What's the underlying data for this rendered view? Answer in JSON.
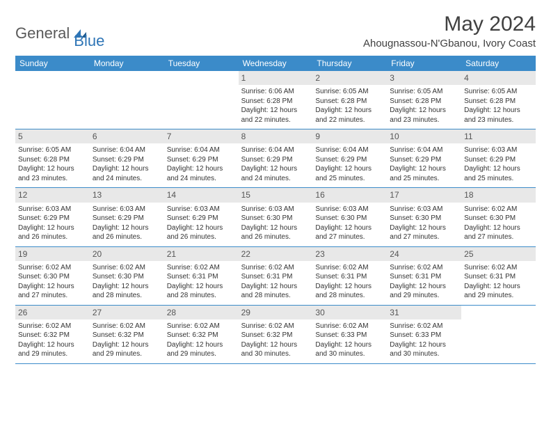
{
  "logo": {
    "text1": "General",
    "text2": "Blue"
  },
  "title": "May 2024",
  "location": "Ahougnassou-N'Gbanou, Ivory Coast",
  "colors": {
    "header_bg": "#3b8bc9",
    "header_text": "#ffffff",
    "daynum_bg": "#e8e8e8",
    "border": "#3b8bc9",
    "logo_gray": "#5a5a5a",
    "logo_blue": "#2e75b6"
  },
  "day_names": [
    "Sunday",
    "Monday",
    "Tuesday",
    "Wednesday",
    "Thursday",
    "Friday",
    "Saturday"
  ],
  "weeks": [
    [
      {
        "day": "",
        "sunrise": "",
        "sunset": "",
        "daylight": ""
      },
      {
        "day": "",
        "sunrise": "",
        "sunset": "",
        "daylight": ""
      },
      {
        "day": "",
        "sunrise": "",
        "sunset": "",
        "daylight": ""
      },
      {
        "day": "1",
        "sunrise": "Sunrise: 6:06 AM",
        "sunset": "Sunset: 6:28 PM",
        "daylight": "Daylight: 12 hours and 22 minutes."
      },
      {
        "day": "2",
        "sunrise": "Sunrise: 6:05 AM",
        "sunset": "Sunset: 6:28 PM",
        "daylight": "Daylight: 12 hours and 22 minutes."
      },
      {
        "day": "3",
        "sunrise": "Sunrise: 6:05 AM",
        "sunset": "Sunset: 6:28 PM",
        "daylight": "Daylight: 12 hours and 23 minutes."
      },
      {
        "day": "4",
        "sunrise": "Sunrise: 6:05 AM",
        "sunset": "Sunset: 6:28 PM",
        "daylight": "Daylight: 12 hours and 23 minutes."
      }
    ],
    [
      {
        "day": "5",
        "sunrise": "Sunrise: 6:05 AM",
        "sunset": "Sunset: 6:28 PM",
        "daylight": "Daylight: 12 hours and 23 minutes."
      },
      {
        "day": "6",
        "sunrise": "Sunrise: 6:04 AM",
        "sunset": "Sunset: 6:29 PM",
        "daylight": "Daylight: 12 hours and 24 minutes."
      },
      {
        "day": "7",
        "sunrise": "Sunrise: 6:04 AM",
        "sunset": "Sunset: 6:29 PM",
        "daylight": "Daylight: 12 hours and 24 minutes."
      },
      {
        "day": "8",
        "sunrise": "Sunrise: 6:04 AM",
        "sunset": "Sunset: 6:29 PM",
        "daylight": "Daylight: 12 hours and 24 minutes."
      },
      {
        "day": "9",
        "sunrise": "Sunrise: 6:04 AM",
        "sunset": "Sunset: 6:29 PM",
        "daylight": "Daylight: 12 hours and 25 minutes."
      },
      {
        "day": "10",
        "sunrise": "Sunrise: 6:04 AM",
        "sunset": "Sunset: 6:29 PM",
        "daylight": "Daylight: 12 hours and 25 minutes."
      },
      {
        "day": "11",
        "sunrise": "Sunrise: 6:03 AM",
        "sunset": "Sunset: 6:29 PM",
        "daylight": "Daylight: 12 hours and 25 minutes."
      }
    ],
    [
      {
        "day": "12",
        "sunrise": "Sunrise: 6:03 AM",
        "sunset": "Sunset: 6:29 PM",
        "daylight": "Daylight: 12 hours and 26 minutes."
      },
      {
        "day": "13",
        "sunrise": "Sunrise: 6:03 AM",
        "sunset": "Sunset: 6:29 PM",
        "daylight": "Daylight: 12 hours and 26 minutes."
      },
      {
        "day": "14",
        "sunrise": "Sunrise: 6:03 AM",
        "sunset": "Sunset: 6:29 PM",
        "daylight": "Daylight: 12 hours and 26 minutes."
      },
      {
        "day": "15",
        "sunrise": "Sunrise: 6:03 AM",
        "sunset": "Sunset: 6:30 PM",
        "daylight": "Daylight: 12 hours and 26 minutes."
      },
      {
        "day": "16",
        "sunrise": "Sunrise: 6:03 AM",
        "sunset": "Sunset: 6:30 PM",
        "daylight": "Daylight: 12 hours and 27 minutes."
      },
      {
        "day": "17",
        "sunrise": "Sunrise: 6:03 AM",
        "sunset": "Sunset: 6:30 PM",
        "daylight": "Daylight: 12 hours and 27 minutes."
      },
      {
        "day": "18",
        "sunrise": "Sunrise: 6:02 AM",
        "sunset": "Sunset: 6:30 PM",
        "daylight": "Daylight: 12 hours and 27 minutes."
      }
    ],
    [
      {
        "day": "19",
        "sunrise": "Sunrise: 6:02 AM",
        "sunset": "Sunset: 6:30 PM",
        "daylight": "Daylight: 12 hours and 27 minutes."
      },
      {
        "day": "20",
        "sunrise": "Sunrise: 6:02 AM",
        "sunset": "Sunset: 6:30 PM",
        "daylight": "Daylight: 12 hours and 28 minutes."
      },
      {
        "day": "21",
        "sunrise": "Sunrise: 6:02 AM",
        "sunset": "Sunset: 6:31 PM",
        "daylight": "Daylight: 12 hours and 28 minutes."
      },
      {
        "day": "22",
        "sunrise": "Sunrise: 6:02 AM",
        "sunset": "Sunset: 6:31 PM",
        "daylight": "Daylight: 12 hours and 28 minutes."
      },
      {
        "day": "23",
        "sunrise": "Sunrise: 6:02 AM",
        "sunset": "Sunset: 6:31 PM",
        "daylight": "Daylight: 12 hours and 28 minutes."
      },
      {
        "day": "24",
        "sunrise": "Sunrise: 6:02 AM",
        "sunset": "Sunset: 6:31 PM",
        "daylight": "Daylight: 12 hours and 29 minutes."
      },
      {
        "day": "25",
        "sunrise": "Sunrise: 6:02 AM",
        "sunset": "Sunset: 6:31 PM",
        "daylight": "Daylight: 12 hours and 29 minutes."
      }
    ],
    [
      {
        "day": "26",
        "sunrise": "Sunrise: 6:02 AM",
        "sunset": "Sunset: 6:32 PM",
        "daylight": "Daylight: 12 hours and 29 minutes."
      },
      {
        "day": "27",
        "sunrise": "Sunrise: 6:02 AM",
        "sunset": "Sunset: 6:32 PM",
        "daylight": "Daylight: 12 hours and 29 minutes."
      },
      {
        "day": "28",
        "sunrise": "Sunrise: 6:02 AM",
        "sunset": "Sunset: 6:32 PM",
        "daylight": "Daylight: 12 hours and 29 minutes."
      },
      {
        "day": "29",
        "sunrise": "Sunrise: 6:02 AM",
        "sunset": "Sunset: 6:32 PM",
        "daylight": "Daylight: 12 hours and 30 minutes."
      },
      {
        "day": "30",
        "sunrise": "Sunrise: 6:02 AM",
        "sunset": "Sunset: 6:33 PM",
        "daylight": "Daylight: 12 hours and 30 minutes."
      },
      {
        "day": "31",
        "sunrise": "Sunrise: 6:02 AM",
        "sunset": "Sunset: 6:33 PM",
        "daylight": "Daylight: 12 hours and 30 minutes."
      },
      {
        "day": "",
        "sunrise": "",
        "sunset": "",
        "daylight": ""
      }
    ]
  ]
}
